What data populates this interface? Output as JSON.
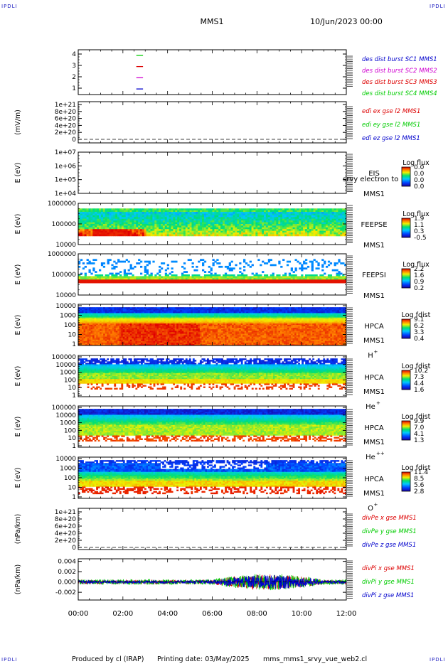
{
  "header": {
    "corner_left": "IPDLI",
    "corner_right": "IPDLI",
    "corner_bottom_left": "IPDLI",
    "corner_bottom_right": "IPDLI",
    "mission": "MMS1",
    "date": "10/Jun/2023 00:00"
  },
  "footer": {
    "produced": "Produced by  cl (IRAP)",
    "printing": "Printing date: 03/May/2025",
    "script": "mms_mms1_srvy_vue_web2.cl"
  },
  "colors": {
    "blue": "#0000cc",
    "magenta": "#d000d0",
    "red": "#dd0000",
    "green": "#00cc00"
  },
  "chart_data": [
    {
      "id": "burst",
      "type": "line",
      "y_ticks": [
        "4",
        "3",
        "2",
        "1"
      ],
      "ylim": [
        0.5,
        4.5
      ],
      "legend": [
        {
          "label": "des dist burst SC1 MMS1",
          "color": "#0000cc"
        },
        {
          "label": "des dist burst SC2 MMS2",
          "color": "#d000d0"
        },
        {
          "label": "des dist burst SC3 MMS3",
          "color": "#dd0000"
        },
        {
          "label": "des dist burst SC4 MMS4",
          "color": "#00cc00"
        }
      ],
      "series": [
        {
          "y": 4,
          "x_hours": [
            2.6,
            2.9
          ],
          "color": "#00cc00"
        },
        {
          "y": 3,
          "x_hours": [
            2.6,
            2.9
          ],
          "color": "#dd0000"
        },
        {
          "y": 2,
          "x_hours": [
            2.6,
            2.9
          ],
          "color": "#d000d0"
        },
        {
          "y": 1,
          "x_hours": [
            2.6,
            2.9
          ],
          "color": "#0000cc"
        }
      ]
    },
    {
      "id": "edi",
      "type": "line",
      "ylabel": "(mV/m)",
      "y_ticks": [
        "1e+21",
        "8e+20",
        "6e+20",
        "4e+20",
        "2e+20",
        "0"
      ],
      "ylim": [
        0,
        1e+21
      ],
      "legend": [
        {
          "label": "edi ex gse l2 MMS1",
          "color": "#dd0000"
        },
        {
          "label": "edi ey gse l2 MMS1",
          "color": "#00cc00"
        },
        {
          "label": "edi ez gse l2 MMS1",
          "color": "#0000cc"
        }
      ]
    },
    {
      "id": "eis",
      "type": "heatmap",
      "ylabel": "E (eV)",
      "y_ticks": [
        "1e+07",
        "1e+06",
        "1e+05",
        "1e+04"
      ],
      "labels": [
        "EIS",
        "MMS1"
      ],
      "overlay_text": "srvy electron to",
      "colorbar": {
        "title": "Log flux",
        "ticks": [
          "0.0",
          "0.0",
          "0.0",
          "0.0"
        ]
      }
    },
    {
      "id": "feepse",
      "type": "heatmap",
      "ylabel": "E (eV)",
      "y_ticks": [
        "1000000",
        "100000",
        "10000"
      ],
      "labels": [
        "FEEPSE",
        "MMS1"
      ],
      "colorbar": {
        "title": "Log flux",
        "ticks": [
          "1.9",
          "1.1",
          "0.3",
          "-0.5"
        ]
      }
    },
    {
      "id": "feepsi",
      "type": "heatmap",
      "ylabel": "E (eV)",
      "y_ticks": [
        "1000000",
        "100000",
        "10000"
      ],
      "labels": [
        "FEEPSI",
        "MMS1"
      ],
      "colorbar": {
        "title": "Log flux",
        "ticks": [
          "2.2",
          "1.6",
          "0.9",
          "0.2"
        ]
      }
    },
    {
      "id": "hpca_h",
      "type": "heatmap",
      "ylabel": "E (eV)",
      "y_ticks": [
        "10000",
        "1000",
        "100",
        "10",
        "1"
      ],
      "labels": [
        "HPCA",
        "MMS1"
      ],
      "species": "H",
      "species_sup": "+",
      "colorbar": {
        "title": "Log fdist",
        "ticks": [
          "9.1",
          "6.2",
          "3.3",
          "0.4"
        ]
      }
    },
    {
      "id": "hpca_he",
      "type": "heatmap",
      "ylabel": "E (eV)",
      "y_ticks": [
        "100000",
        "10000",
        "1000",
        "100",
        "10",
        "1"
      ],
      "labels": [
        "HPCA",
        "MMS1"
      ],
      "species": "He",
      "species_sup": "+",
      "colorbar": {
        "title": "Log fdist",
        "ticks": [
          "10.2",
          "7.3",
          "4.4",
          "1.6"
        ]
      }
    },
    {
      "id": "hpca_hepp",
      "type": "heatmap",
      "ylabel": "E (eV)",
      "y_ticks": [
        "100000",
        "10000",
        "1000",
        "100",
        "10",
        "1"
      ],
      "labels": [
        "HPCA",
        "MMS1"
      ],
      "species": "He",
      "species_sup": "++",
      "colorbar": {
        "title": "Log fdist",
        "ticks": [
          "9.9",
          "7.0",
          "4.1",
          "1.3"
        ]
      }
    },
    {
      "id": "hpca_o",
      "type": "heatmap",
      "ylabel": "E (eV)",
      "y_ticks": [
        "10000",
        "1000",
        "100",
        "10",
        "1"
      ],
      "labels": [
        "HPCA",
        "MMS1"
      ],
      "species": "O",
      "species_sup": "+",
      "colorbar": {
        "title": "Log fdist",
        "ticks": [
          "11.4",
          "8.5",
          "5.6",
          "2.8"
        ]
      }
    },
    {
      "id": "divpe",
      "type": "line",
      "ylabel": "(nPa/km)",
      "y_ticks": [
        "1e+21",
        "8e+20",
        "6e+20",
        "4e+20",
        "2e+20",
        "0"
      ],
      "ylim": [
        0,
        1e+21
      ],
      "legend": [
        {
          "label": "divPe x gse MMS1",
          "color": "#dd0000"
        },
        {
          "label": "divPe y gse MMS1",
          "color": "#00cc00"
        },
        {
          "label": "divPe z gse MMS1",
          "color": "#0000cc"
        }
      ]
    },
    {
      "id": "divpi",
      "type": "line",
      "ylabel": "(nPa/km)",
      "y_ticks": [
        "0.004",
        "0.002",
        "0.000",
        "-0.002"
      ],
      "ylim": [
        -0.0035,
        0.0045
      ],
      "legend": [
        {
          "label": "divPi x gse MMS1",
          "color": "#dd0000"
        },
        {
          "label": "divPi y gse MMS1",
          "color": "#00cc00"
        },
        {
          "label": "divPi z gse MMS1",
          "color": "#0000cc"
        }
      ]
    }
  ],
  "x_axis": {
    "ticks": [
      "00:00",
      "02:00",
      "04:00",
      "06:00",
      "08:00",
      "10:00",
      "12:00"
    ],
    "range_hours": [
      0,
      12
    ]
  }
}
